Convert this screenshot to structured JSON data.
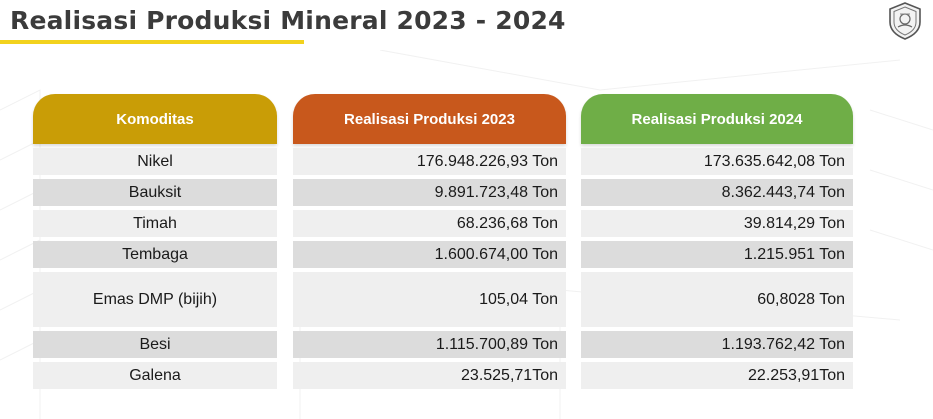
{
  "title": "Realisasi Produksi Mineral 2023 - 2024",
  "colors": {
    "accent_rule": "#f2d21d",
    "komoditas_header": "#c99d06",
    "header_2023": "#c8581c",
    "header_2024": "#6fae47"
  },
  "logo": {
    "icon": "government-seal-icon"
  },
  "table": {
    "headers": {
      "komoditas": "Komoditas",
      "y2023": "Realisasi Produksi 2023",
      "y2024": "Realisasi Produksi 2024"
    },
    "rows": [
      {
        "komoditas": "Nikel",
        "y2023": "176.948.226,93 Ton",
        "y2024": "173.635.642,08 Ton"
      },
      {
        "komoditas": "Bauksit",
        "y2023": "9.891.723,48 Ton",
        "y2024": "8.362.443,74 Ton"
      },
      {
        "komoditas": "Timah",
        "y2023": "68.236,68 Ton",
        "y2024": "39.814,29 Ton"
      },
      {
        "komoditas": "Tembaga",
        "y2023": "1.600.674,00 Ton",
        "y2024": "1.215.951 Ton"
      },
      {
        "komoditas": "Emas DMP (bijih)",
        "y2023": "105,04 Ton",
        "y2024": "60,8028 Ton"
      },
      {
        "komoditas": "Besi",
        "y2023": "1.115.700,89 Ton",
        "y2024": "1.193.762,42 Ton"
      },
      {
        "komoditas": "Galena",
        "y2023": "23.525,71Ton",
        "y2024": "22.253,91Ton"
      }
    ]
  }
}
